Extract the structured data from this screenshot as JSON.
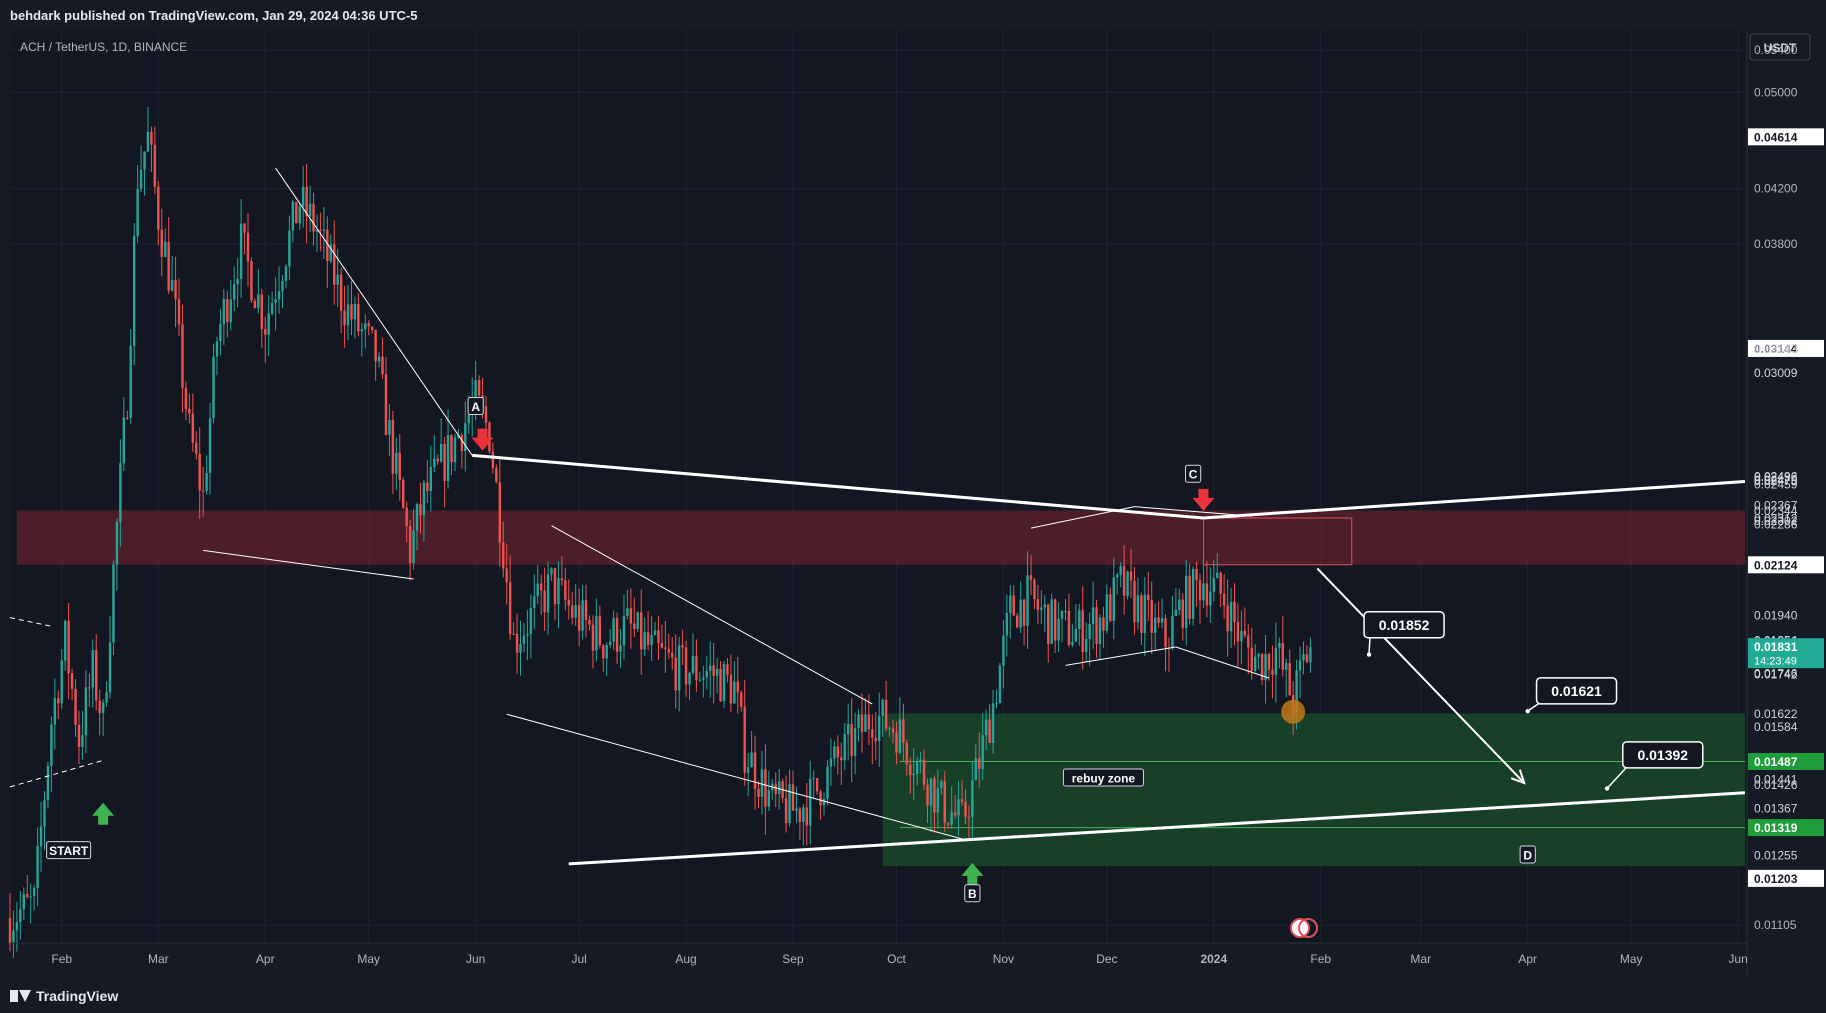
{
  "header": {
    "publisher": "behdark published on TradingView.com, Jan 29, 2024 04:36 UTC-5"
  },
  "footer": {
    "brand": "TradingView"
  },
  "colors": {
    "bg": "#131722",
    "up": "#26a69a",
    "down": "#ef5350",
    "supply": "#7a2530",
    "demand": "#1b4d2b",
    "grid": "#1f2331"
  },
  "chart_data": {
    "type": "candlestick",
    "symbol_label": "ACH / TetherUS, 1D, BINANCE",
    "currency": "USDT",
    "y_scale": "log",
    "ylim": [
      0.0107,
      0.056
    ],
    "xlim": [
      "2023-01-17",
      "2024-06-03"
    ],
    "x_ticks": [
      {
        "label": "Feb",
        "date": "2023-02-01"
      },
      {
        "label": "Mar",
        "date": "2023-03-01"
      },
      {
        "label": "Apr",
        "date": "2023-04-01"
      },
      {
        "label": "May",
        "date": "2023-05-01"
      },
      {
        "label": "Jun",
        "date": "2023-06-01"
      },
      {
        "label": "Jul",
        "date": "2023-07-01"
      },
      {
        "label": "Aug",
        "date": "2023-08-01"
      },
      {
        "label": "Sep",
        "date": "2023-09-01"
      },
      {
        "label": "Oct",
        "date": "2023-10-01"
      },
      {
        "label": "Nov",
        "date": "2023-11-01"
      },
      {
        "label": "Dec",
        "date": "2023-12-01"
      },
      {
        "label": "2024",
        "date": "2024-01-01"
      },
      {
        "label": "Feb",
        "date": "2024-02-01"
      },
      {
        "label": "Mar",
        "date": "2024-03-01"
      },
      {
        "label": "Apr",
        "date": "2024-04-01"
      },
      {
        "label": "May",
        "date": "2024-05-01"
      },
      {
        "label": "Jun",
        "date": "2024-06-01"
      }
    ],
    "y_ticks": [
      "0.05400",
      "0.05000",
      "0.04200",
      "0.03800",
      "0.01105"
    ],
    "price_labels": [
      {
        "value": 0.04614,
        "text": "0.04614",
        "style": "white"
      },
      {
        "value": 0.03144,
        "text": "0.03144",
        "style": "white"
      },
      {
        "value": 0.03143,
        "text": "0.03143",
        "style": "plain"
      },
      {
        "value": 0.03009,
        "text": "0.03009",
        "style": "plain"
      },
      {
        "value": 0.02496,
        "text": "0.02496",
        "style": "plain"
      },
      {
        "value": 0.02492,
        "text": "0.02492",
        "style": "plain"
      },
      {
        "value": 0.02479,
        "text": "0.02479",
        "style": "plain"
      },
      {
        "value": 0.02475,
        "text": "0.02475",
        "style": "plain"
      },
      {
        "value": 0.02459,
        "text": "0.02459",
        "style": "plain"
      },
      {
        "value": 0.02367,
        "text": "0.02367",
        "style": "plain"
      },
      {
        "value": 0.02344,
        "text": "0.02344",
        "style": "plain"
      },
      {
        "value": 0.02312,
        "text": "0.02312",
        "style": "plain"
      },
      {
        "value": 0.02302,
        "text": "0.02302",
        "style": "plain"
      },
      {
        "value": 0.02286,
        "text": "0.02286",
        "style": "plain"
      },
      {
        "value": 0.02124,
        "text": "0.02124",
        "style": "white"
      },
      {
        "value": 0.0194,
        "text": "0.01940",
        "style": "plain"
      },
      {
        "value": 0.01854,
        "text": "0.01854",
        "style": "plain"
      },
      {
        "value": 0.01851,
        "text": "0.01851",
        "style": "plain"
      },
      {
        "value": 0.01831,
        "text": "0.01831",
        "style": "current",
        "sub": "14:23:49"
      },
      {
        "value": 0.01746,
        "text": "0.01746",
        "style": "plain"
      },
      {
        "value": 0.01742,
        "text": "0.01742",
        "style": "plain"
      },
      {
        "value": 0.01622,
        "text": "0.01622",
        "style": "plain"
      },
      {
        "value": 0.01584,
        "text": "0.01584",
        "style": "plain"
      },
      {
        "value": 0.01487,
        "text": "0.01487",
        "style": "green"
      },
      {
        "value": 0.01441,
        "text": "0.01441",
        "style": "plain"
      },
      {
        "value": 0.01426,
        "text": "0.01426",
        "style": "plain"
      },
      {
        "value": 0.01367,
        "text": "0.01367",
        "style": "plain"
      },
      {
        "value": 0.01319,
        "text": "0.01319",
        "style": "green"
      },
      {
        "value": 0.01255,
        "text": "0.01255",
        "style": "plain"
      },
      {
        "value": 0.01203,
        "text": "0.01203",
        "style": "white"
      }
    ],
    "ohlc_anchors": [
      [
        "2023-01-17",
        0.0112
      ],
      [
        "2023-01-24",
        0.0115
      ],
      [
        "2023-01-29",
        0.016
      ],
      [
        "2023-02-02",
        0.0185
      ],
      [
        "2023-02-06",
        0.0155
      ],
      [
        "2023-02-10",
        0.0175
      ],
      [
        "2023-02-13",
        0.016
      ],
      [
        "2023-02-16",
        0.021
      ],
      [
        "2023-02-20",
        0.029
      ],
      [
        "2023-02-23",
        0.043
      ],
      [
        "2023-02-26",
        0.046
      ],
      [
        "2023-03-01",
        0.04
      ],
      [
        "2023-03-05",
        0.035
      ],
      [
        "2023-03-10",
        0.027
      ],
      [
        "2023-03-14",
        0.024
      ],
      [
        "2023-03-18",
        0.032
      ],
      [
        "2023-03-25",
        0.038
      ],
      [
        "2023-04-01",
        0.033
      ],
      [
        "2023-04-05",
        0.036
      ],
      [
        "2023-04-11",
        0.041
      ],
      [
        "2023-04-16",
        0.039
      ],
      [
        "2023-04-24",
        0.034
      ],
      [
        "2023-05-03",
        0.031
      ],
      [
        "2023-05-09",
        0.025
      ],
      [
        "2023-05-13",
        0.0218
      ],
      [
        "2023-05-17",
        0.024
      ],
      [
        "2023-05-24",
        0.026
      ],
      [
        "2023-06-01",
        0.0285
      ],
      [
        "2023-06-05",
        0.027
      ],
      [
        "2023-06-09",
        0.022
      ],
      [
        "2023-06-12",
        0.0185
      ],
      [
        "2023-06-18",
        0.0195
      ],
      [
        "2023-06-23",
        0.0205
      ],
      [
        "2023-06-29",
        0.0195
      ],
      [
        "2023-07-08",
        0.0185
      ],
      [
        "2023-07-15",
        0.019
      ],
      [
        "2023-07-22",
        0.0182
      ],
      [
        "2023-07-30",
        0.0176
      ],
      [
        "2023-08-08",
        0.0175
      ],
      [
        "2023-08-15",
        0.017
      ],
      [
        "2023-08-18",
        0.0152
      ],
      [
        "2023-08-26",
        0.0138
      ],
      [
        "2023-09-02",
        0.0136
      ],
      [
        "2023-09-07",
        0.014
      ],
      [
        "2023-09-13",
        0.0148
      ],
      [
        "2023-09-19",
        0.0155
      ],
      [
        "2023-09-24",
        0.0162
      ],
      [
        "2023-10-01",
        0.0158
      ],
      [
        "2023-10-07",
        0.0148
      ],
      [
        "2023-10-14",
        0.0138
      ],
      [
        "2023-10-20",
        0.0133
      ],
      [
        "2023-10-24",
        0.0145
      ],
      [
        "2023-10-29",
        0.0165
      ],
      [
        "2023-11-03",
        0.0195
      ],
      [
        "2023-11-08",
        0.02
      ],
      [
        "2023-11-16",
        0.019
      ],
      [
        "2023-11-22",
        0.0188
      ],
      [
        "2023-11-30",
        0.0193
      ],
      [
        "2023-12-05",
        0.0205
      ],
      [
        "2023-12-11",
        0.0195
      ],
      [
        "2023-12-18",
        0.0185
      ],
      [
        "2023-12-23",
        0.0198
      ],
      [
        "2023-12-29",
        0.0207
      ],
      [
        "2024-01-04",
        0.02
      ],
      [
        "2024-01-09",
        0.0185
      ],
      [
        "2024-01-14",
        0.0178
      ],
      [
        "2024-01-19",
        0.0182
      ],
      [
        "2024-01-24",
        0.0166
      ],
      [
        "2024-01-27",
        0.0178
      ],
      [
        "2024-01-29",
        0.0183
      ]
    ],
    "zones": [
      {
        "name": "supply",
        "y1": 0.02124,
        "y2": 0.02344,
        "x1": "2023-01-19",
        "x2": "2024-06-03"
      },
      {
        "name": "demand",
        "y1": 0.0123,
        "y2": 0.01622,
        "x1": "2023-09-27",
        "x2": "2024-06-03"
      },
      {
        "name": "supply-box",
        "y1": 0.02124,
        "y2": 0.02312,
        "x1": "2023-12-29",
        "x2": "2024-02-10"
      }
    ],
    "hlines": [
      {
        "value": 0.01487,
        "x1": "2023-10-02",
        "x2": "2024-06-03"
      },
      {
        "value": 0.01319,
        "x1": "2023-10-02",
        "x2": "2024-06-03"
      }
    ],
    "trendlines": [
      {
        "p1": [
          "2023-05-31",
          0.0259
        ],
        "p2": [
          "2023-12-29",
          0.02312
        ],
        "w": 3
      },
      {
        "p1": [
          "2023-12-29",
          0.02312
        ],
        "p2": [
          "2024-06-03",
          0.0247
        ],
        "w": 3
      },
      {
        "p1": [
          "2023-06-28",
          0.01235
        ],
        "p2": [
          "2024-06-03",
          0.01405
        ],
        "w": 3
      },
      {
        "p1": [
          "2023-04-04",
          0.0436
        ],
        "p2": [
          "2023-05-31",
          0.0259
        ],
        "w": 1
      },
      {
        "p1": [
          "2023-03-14",
          0.0218
        ],
        "p2": [
          "2023-05-14",
          0.0207
        ],
        "w": 1
      },
      {
        "p1": [
          "2023-06-23",
          0.0228
        ],
        "p2": [
          "2023-09-24",
          0.0165
        ],
        "w": 1
      },
      {
        "p1": [
          "2023-06-10",
          0.0162
        ],
        "p2": [
          "2023-10-21",
          0.0129
        ],
        "w": 1
      },
      {
        "p1": [
          "2023-11-09",
          0.0227
        ],
        "p2": [
          "2023-12-09",
          0.0236
        ],
        "w": 1
      },
      {
        "p1": [
          "2023-12-09",
          0.0236
        ],
        "p2": [
          "2024-01-12",
          0.0232
        ],
        "w": 1
      },
      {
        "p1": [
          "2023-11-19",
          0.0177
        ],
        "p2": [
          "2023-12-21",
          0.0183
        ],
        "w": 1
      },
      {
        "p1": [
          "2023-12-21",
          0.0183
        ],
        "p2": [
          "2024-01-17",
          0.0173
        ],
        "w": 1
      },
      {
        "p1": [
          "2023-01-17",
          0.0193
        ],
        "p2": [
          "2023-01-29",
          0.019
        ],
        "w": 1,
        "dash": true
      },
      {
        "p1": [
          "2023-01-17",
          0.0142
        ],
        "p2": [
          "2023-02-13",
          0.0149
        ],
        "w": 1,
        "dash": true
      }
    ],
    "projection_arrow": {
      "p1": [
        "2024-01-31",
        0.0211
      ],
      "p2": [
        "2024-03-31",
        0.0143
      ]
    },
    "text_labels": [
      {
        "text": "A",
        "x": "2023-06-01",
        "y": 0.0283,
        "box": "dark"
      },
      {
        "text": "B",
        "x": "2023-10-23",
        "y": 0.0117,
        "box": "dark"
      },
      {
        "text": "C",
        "x": "2023-12-26",
        "y": 0.02503,
        "box": "dark"
      },
      {
        "text": "D",
        "x": "2024-04-01",
        "y": 0.01255,
        "box": "dark"
      },
      {
        "text": "START",
        "x": "2023-02-03",
        "y": 0.01265,
        "box": "dark"
      },
      {
        "text": "rebuy zone",
        "x": "2023-11-30",
        "y": 0.01443,
        "box": "dark"
      }
    ],
    "callouts": [
      {
        "text": "0.01852",
        "x": "2024-02-24",
        "y": 0.01905,
        "dot": [
          "2024-02-15",
          0.01805
        ]
      },
      {
        "text": "0.01621",
        "x": "2024-04-14",
        "y": 0.0169,
        "dot": [
          "2024-04-01",
          0.01629
        ]
      },
      {
        "text": "0.01392",
        "x": "2024-05-09",
        "y": 0.01505,
        "dot": [
          "2024-04-24",
          0.01416
        ]
      }
    ],
    "arrows": [
      {
        "dir": "down",
        "color": "red",
        "x": "2023-06-03",
        "y": 0.0266
      },
      {
        "dir": "down",
        "color": "red",
        "x": "2023-12-29",
        "y": 0.02385
      },
      {
        "dir": "up",
        "color": "green",
        "x": "2023-02-13",
        "y": 0.01355
      },
      {
        "dir": "up",
        "color": "green",
        "x": "2023-10-23",
        "y": 0.01215
      }
    ],
    "marker_circle": {
      "x": "2024-01-24",
      "y": 0.01627
    }
  }
}
